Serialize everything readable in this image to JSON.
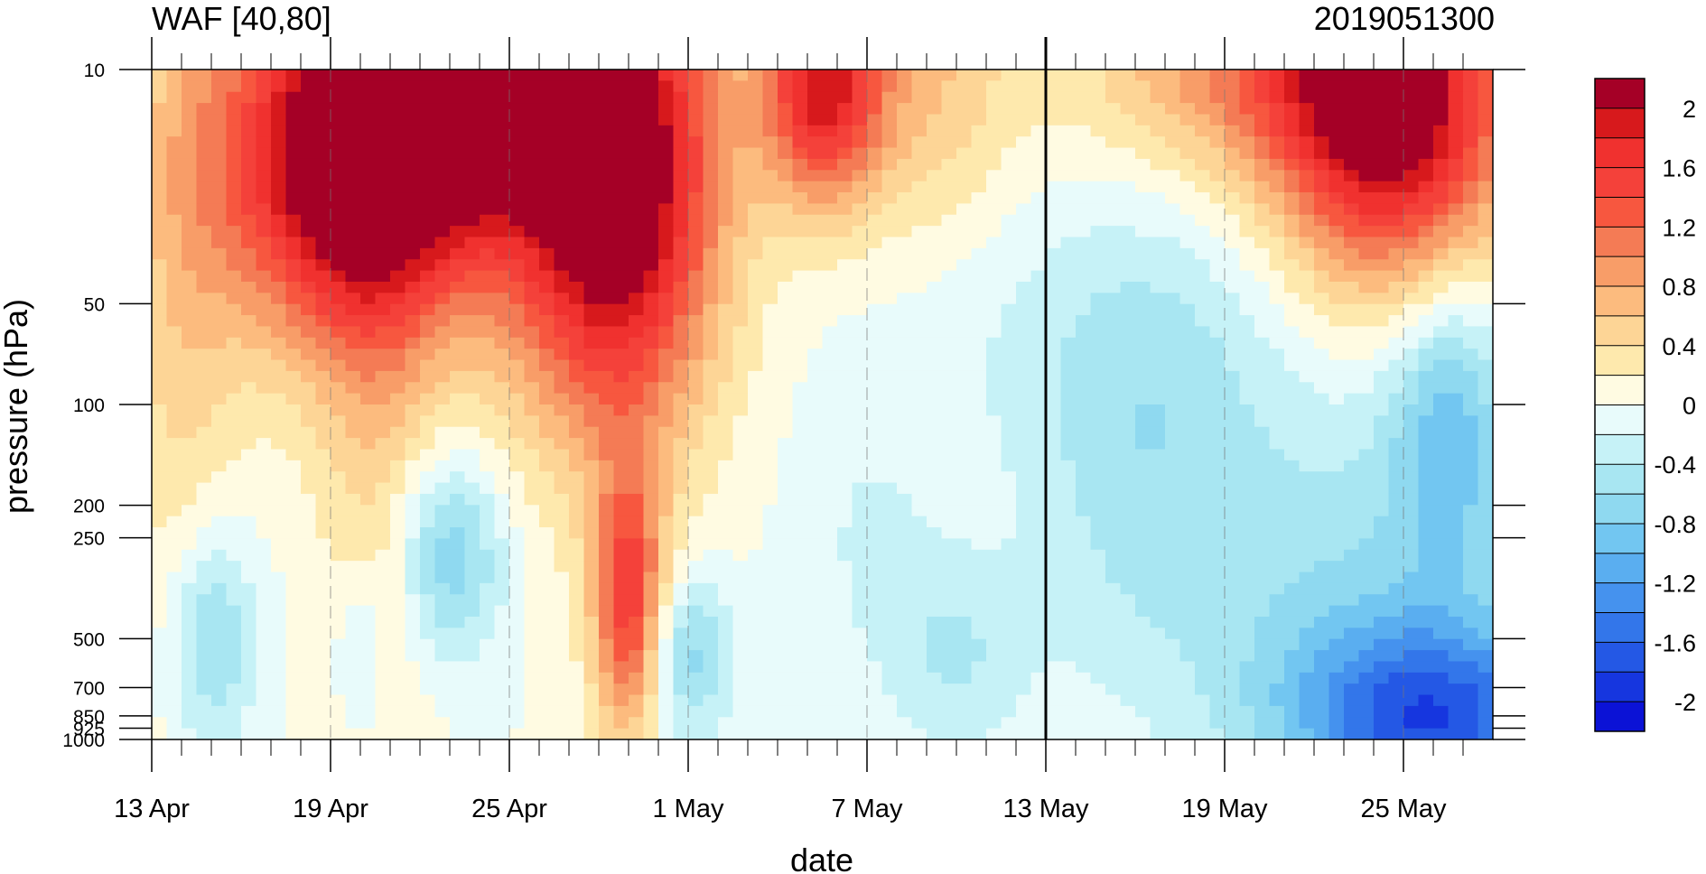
{
  "chart_data": {
    "type": "heatmap",
    "title": "WAF [40,80]",
    "subtitle": "2019051300",
    "xlabel": "date",
    "ylabel": "pressure (hPa)",
    "x_ticks": [
      "13 Apr",
      "19 Apr",
      "25 Apr",
      "1 May",
      "7 May",
      "13 May",
      "19 May",
      "25 May"
    ],
    "y_ticks": [
      "10",
      "50",
      "100",
      "200",
      "250",
      "500",
      "700",
      "850",
      "925",
      "1000"
    ],
    "y_scale": "log",
    "ylim": [
      1000,
      10
    ],
    "xlim": [
      "13 Apr",
      "27 May"
    ],
    "vertical_marker": "13 May",
    "colorbar": {
      "labels": [
        "2",
        "1.6",
        "1.2",
        "0.8",
        "0.4",
        "0",
        "-0.4",
        "-0.8",
        "-1.2",
        "-1.6",
        "-2"
      ],
      "levels": [
        2.2,
        2.0,
        1.8,
        1.6,
        1.4,
        1.2,
        1.0,
        0.8,
        0.6,
        0.4,
        0.2,
        0,
        -0.2,
        -0.4,
        -0.6,
        -0.8,
        -1.0,
        -1.2,
        -1.4,
        -1.6,
        -1.8,
        -2.0,
        -2.2
      ],
      "colors": [
        "#a50026",
        "#d7191c",
        "#f0312f",
        "#f4413a",
        "#f7573f",
        "#f47b55",
        "#f89d68",
        "#fcbb7e",
        "#fdd596",
        "#fee9ad",
        "#fffbe2",
        "#e8fbfb",
        "#c6f2f7",
        "#a8e6f2",
        "#8fd9f0",
        "#72c6f1",
        "#5aaef0",
        "#4592ee",
        "#3376ea",
        "#2458e5",
        "#1636df",
        "#0b12d6"
      ]
    }
  }
}
